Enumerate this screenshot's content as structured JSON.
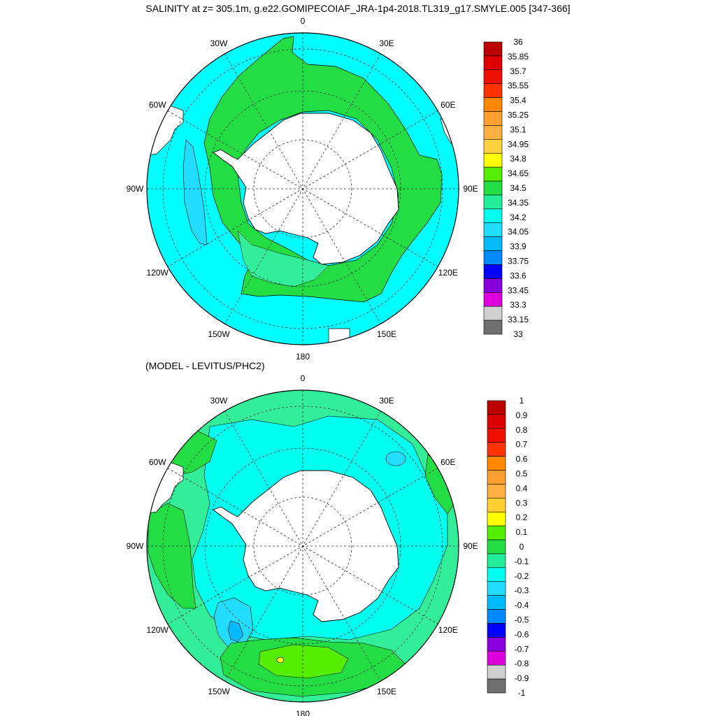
{
  "title": "SALINITY at z= 305.1m, g.e22.GOMIPECOIAF_JRA-1p4-2018.TL319_g17.SMYLE.005 [347-366]",
  "subtitle": "(MODEL - LEVITUS/PHC2)",
  "map_labels": [
    "0",
    "30E",
    "60E",
    "90E",
    "120E",
    "150E",
    "180",
    "150W",
    "120W",
    "90W",
    "60W",
    "30W"
  ],
  "colors": {
    "ocean_low": "#00ffff",
    "ocean_mid": "#33ee99",
    "ocean_high": "#22dd44",
    "land": "#ffffff",
    "contour": "#000000"
  },
  "top_colorbar": {
    "labels": [
      "36",
      "35.85",
      "35.7",
      "35.55",
      "35.4",
      "35.25",
      "35.1",
      "34.95",
      "34.8",
      "34.65",
      "34.5",
      "34.35",
      "34.2",
      "34.05",
      "33.9",
      "33.75",
      "33.6",
      "33.45",
      "33.3",
      "33.15",
      "33"
    ],
    "colors": [
      "#bb0000",
      "#dd0000",
      "#ee1100",
      "#ff3300",
      "#ff8800",
      "#ffa030",
      "#ffb040",
      "#ffd040",
      "#ffff00",
      "#55ee00",
      "#22dd44",
      "#22ee99",
      "#00ffee",
      "#22ddff",
      "#00bbff",
      "#0088ff",
      "#0000ff",
      "#8800dd",
      "#dd00dd",
      "#d0d0d0",
      "#707070"
    ]
  },
  "bottom_colorbar": {
    "labels": [
      "1",
      "0.9",
      "0.8",
      "0.7",
      "0.6",
      "0.5",
      "0.4",
      "0.3",
      "0.2",
      "0.1",
      "0",
      "-0.1",
      "-0.2",
      "-0.3",
      "-0.4",
      "-0.5",
      "-0.6",
      "-0.7",
      "-0.8",
      "-0.9",
      "-1"
    ],
    "colors": [
      "#bb0000",
      "#dd0000",
      "#ee1100",
      "#ff3300",
      "#ff8800",
      "#ffa030",
      "#ffb040",
      "#ffd030",
      "#ffff00",
      "#55ee00",
      "#22dd44",
      "#22ee99",
      "#00ffee",
      "#22ddff",
      "#00bbff",
      "#0088ff",
      "#0000ff",
      "#8800dd",
      "#dd00dd",
      "#d0d0d0",
      "#707070"
    ]
  }
}
